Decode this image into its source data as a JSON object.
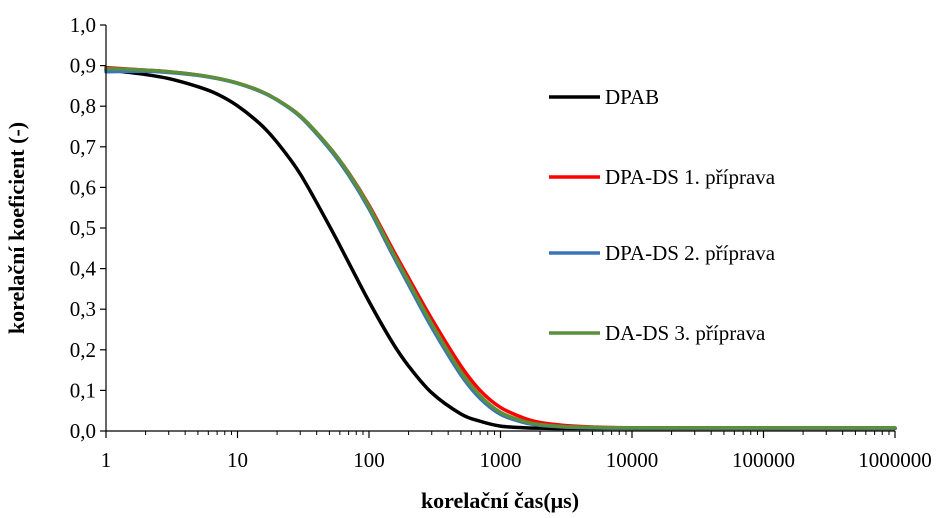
{
  "chart_data": {
    "type": "line",
    "title": "",
    "xlabel": "korelační čas(μs)",
    "ylabel": "korelační koeficient (-)",
    "xscale": "log",
    "xlim": [
      1,
      1000000
    ],
    "ylim": [
      0,
      1.0
    ],
    "x_ticks": [
      1,
      10,
      100,
      1000,
      10000,
      100000,
      1000000
    ],
    "x_tick_labels": [
      "1",
      "10",
      "100",
      "1000",
      "10000",
      "100000",
      "1000000"
    ],
    "y_ticks": [
      0,
      0.1,
      0.2,
      0.3,
      0.4,
      0.5,
      0.6,
      0.7,
      0.8,
      0.9,
      1.0
    ],
    "y_tick_labels": [
      "0,0",
      "0,1",
      "0,2",
      "0,3",
      "0,4",
      "0,5",
      "0,6",
      "0,7",
      "0,8",
      "0,9",
      "1,0"
    ],
    "grid": false,
    "legend_position": "right",
    "x": [
      1,
      2,
      3,
      5,
      7,
      10,
      15,
      20,
      30,
      50,
      70,
      100,
      150,
      200,
      300,
      500,
      700,
      1000,
      1500,
      2000,
      3000,
      5000,
      10000,
      100000,
      1000000
    ],
    "series": [
      {
        "name": "DPAB",
        "color": "#000000",
        "values": [
          0.89,
          0.878,
          0.868,
          0.848,
          0.83,
          0.801,
          0.755,
          0.711,
          0.633,
          0.505,
          0.415,
          0.319,
          0.219,
          0.16,
          0.094,
          0.042,
          0.024,
          0.012,
          0.008,
          0.007,
          0.006,
          0.006,
          0.006,
          0.006,
          0.006
        ]
      },
      {
        "name": "DPA-DS 1. příprava",
        "color": "#ff0000",
        "values": [
          0.895,
          0.889,
          0.885,
          0.877,
          0.869,
          0.857,
          0.837,
          0.816,
          0.776,
          0.699,
          0.636,
          0.556,
          0.45,
          0.377,
          0.276,
          0.16,
          0.1,
          0.058,
          0.032,
          0.021,
          0.014,
          0.01,
          0.008,
          0.007,
          0.007
        ]
      },
      {
        "name": "DPA-DS 2. příprava",
        "color": "#3a75b8",
        "values": [
          0.885,
          0.886,
          0.883,
          0.876,
          0.868,
          0.856,
          0.836,
          0.815,
          0.774,
          0.695,
          0.63,
          0.547,
          0.436,
          0.36,
          0.255,
          0.138,
          0.08,
          0.041,
          0.021,
          0.014,
          0.01,
          0.008,
          0.007,
          0.007,
          0.007
        ]
      },
      {
        "name": "DA-DS 3. příprava",
        "color": "#5a8f3c",
        "values": [
          0.893,
          0.889,
          0.885,
          0.877,
          0.869,
          0.857,
          0.837,
          0.816,
          0.776,
          0.699,
          0.635,
          0.553,
          0.443,
          0.368,
          0.264,
          0.146,
          0.087,
          0.046,
          0.024,
          0.016,
          0.011,
          0.009,
          0.008,
          0.008,
          0.008
        ]
      }
    ]
  }
}
